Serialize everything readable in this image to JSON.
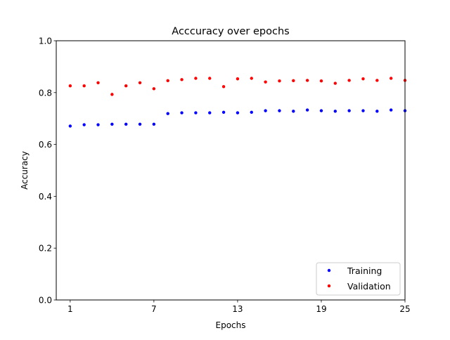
{
  "chart_data": {
    "type": "scatter",
    "title": "Acccuracy over epochs",
    "xlabel": "Epochs",
    "ylabel": "Accuracy",
    "xlim": [
      0,
      25
    ],
    "ylim": [
      0.0,
      1.0
    ],
    "xticks": [
      1,
      7,
      13,
      19,
      25
    ],
    "yticks": [
      0.0,
      0.2,
      0.4,
      0.6,
      0.8,
      1.0
    ],
    "legend_position": "lower-right",
    "grid": false,
    "series": [
      {
        "name": "Training",
        "color": "#0000ff",
        "x": [
          1,
          2,
          3,
          4,
          5,
          6,
          7,
          8,
          9,
          10,
          11,
          12,
          13,
          14,
          15,
          16,
          17,
          18,
          19,
          20,
          21,
          22,
          23,
          24,
          25
        ],
        "y": [
          0.671,
          0.676,
          0.676,
          0.678,
          0.678,
          0.678,
          0.678,
          0.719,
          0.722,
          0.722,
          0.722,
          0.724,
          0.722,
          0.724,
          0.73,
          0.73,
          0.728,
          0.733,
          0.73,
          0.728,
          0.73,
          0.73,
          0.728,
          0.733,
          0.73
        ]
      },
      {
        "name": "Validation",
        "color": "#ff0000",
        "x": [
          1,
          2,
          3,
          4,
          5,
          6,
          7,
          8,
          9,
          10,
          11,
          12,
          13,
          14,
          15,
          16,
          17,
          18,
          19,
          20,
          21,
          22,
          23,
          24,
          25
        ],
        "y": [
          0.826,
          0.826,
          0.838,
          0.793,
          0.826,
          0.838,
          0.815,
          0.846,
          0.85,
          0.855,
          0.855,
          0.823,
          0.853,
          0.855,
          0.841,
          0.845,
          0.846,
          0.847,
          0.845,
          0.836,
          0.847,
          0.853,
          0.847,
          0.855,
          0.847
        ]
      }
    ]
  }
}
